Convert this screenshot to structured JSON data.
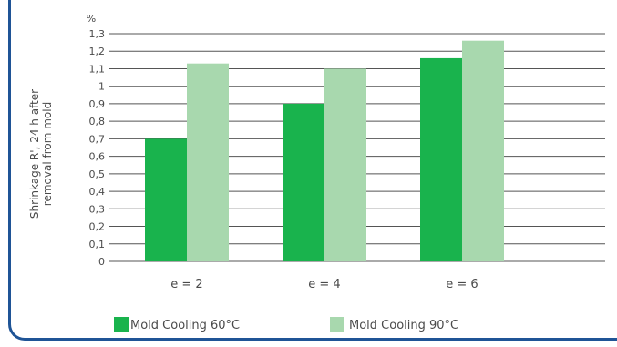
{
  "chart_data": {
    "type": "bar",
    "unit_label": "%",
    "ylabel_line1": "Shrinkage R', 24 h after",
    "ylabel_line2": "removal from mold",
    "categories": [
      "e = 2",
      "e = 4",
      "e = 6"
    ],
    "series": [
      {
        "name": "Mold Cooling 60°C",
        "color": "#19b34d",
        "values": [
          0.7,
          0.9,
          1.16
        ]
      },
      {
        "name": "Mold Cooling 90°C",
        "color": "#a8d8ae",
        "values": [
          1.13,
          1.1,
          1.26
        ]
      }
    ],
    "ylim": [
      0,
      1.3
    ],
    "y_step": 0.1,
    "y_tick_labels": [
      "0",
      "0,1",
      "0,2",
      "0,3",
      "0,4",
      "0,5",
      "0,6",
      "0,7",
      "0,8",
      "0,9",
      "1",
      "1,1",
      "1,2",
      "1,3"
    ],
    "grid": true,
    "legend_position": "bottom"
  },
  "colors": {
    "frame": "#1f5496",
    "grid": "#555555",
    "text": "#4a4a4a"
  }
}
